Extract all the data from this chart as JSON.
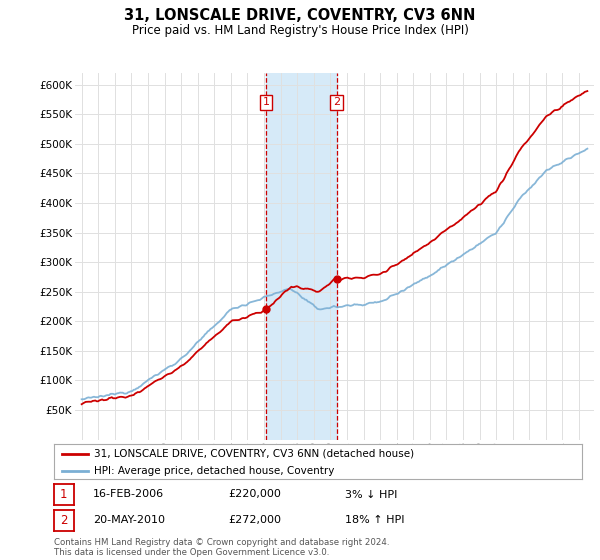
{
  "title": "31, LONSCALE DRIVE, COVENTRY, CV3 6NN",
  "subtitle": "Price paid vs. HM Land Registry's House Price Index (HPI)",
  "footer": "Contains HM Land Registry data © Crown copyright and database right 2024.\nThis data is licensed under the Open Government Licence v3.0.",
  "legend_line1": "31, LONSCALE DRIVE, COVENTRY, CV3 6NN (detached house)",
  "legend_line2": "HPI: Average price, detached house, Coventry",
  "transaction1_label": "1",
  "transaction1_date": "16-FEB-2006",
  "transaction1_price": "£220,000",
  "transaction1_hpi": "3% ↓ HPI",
  "transaction2_label": "2",
  "transaction2_date": "20-MAY-2010",
  "transaction2_price": "£272,000",
  "transaction2_hpi": "18% ↑ HPI",
  "red_color": "#cc0000",
  "blue_color": "#7bafd4",
  "background_color": "#ffffff",
  "grid_color": "#e0e0e0",
  "shade_color": "#d6eaf8",
  "ylim_min": 0,
  "ylim_max": 620000,
  "yticks": [
    50000,
    100000,
    150000,
    200000,
    250000,
    300000,
    350000,
    400000,
    450000,
    500000,
    550000,
    600000
  ],
  "vline1_x": 2006.12,
  "vline2_x": 2010.38,
  "marker1_x": 2006.12,
  "marker1_y": 220000,
  "marker2_x": 2010.38,
  "marker2_y": 272000,
  "xlim_min": 1994.6,
  "xlim_max": 2025.9
}
